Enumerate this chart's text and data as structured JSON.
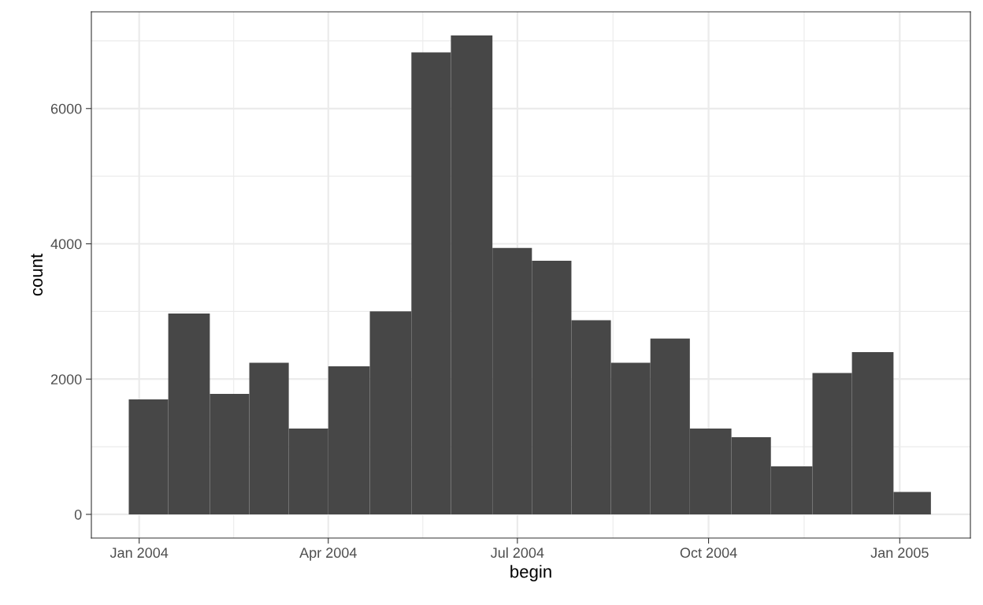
{
  "chart_data": {
    "type": "histogram",
    "xlabel": "begin",
    "ylabel": "count",
    "color": "#474747",
    "bins": [
      "2003-12-27",
      "2004-01-15",
      "2004-02-04",
      "2004-02-23",
      "2004-03-13",
      "2004-04-01",
      "2004-04-21",
      "2004-05-11",
      "2004-05-30",
      "2004-06-19",
      "2004-07-08",
      "2004-07-27",
      "2004-08-15",
      "2004-09-03",
      "2004-09-22",
      "2004-10-12",
      "2004-10-31",
      "2004-11-20",
      "2004-12-09",
      "2004-12-29",
      "2005-01-16"
    ],
    "values": [
      1700,
      2970,
      1780,
      2240,
      1270,
      2190,
      3000,
      6830,
      7080,
      3940,
      3750,
      2870,
      2240,
      2600,
      1270,
      1140,
      710,
      2090,
      2400,
      330
    ],
    "xlim": [
      "2003-12-09",
      "2005-02-04"
    ],
    "xticks": [
      {
        "value": "2004-01-01",
        "label": "Jan 2004"
      },
      {
        "value": "2004-04-01",
        "label": "Apr 2004"
      },
      {
        "value": "2004-07-01",
        "label": "Jul 2004"
      },
      {
        "value": "2004-10-01",
        "label": "Oct 2004"
      },
      {
        "value": "2005-01-01",
        "label": "Jan 2005"
      }
    ],
    "ylim": [
      -350,
      7430
    ],
    "yticks": [
      0,
      2000,
      4000,
      6000
    ],
    "grid": true
  }
}
